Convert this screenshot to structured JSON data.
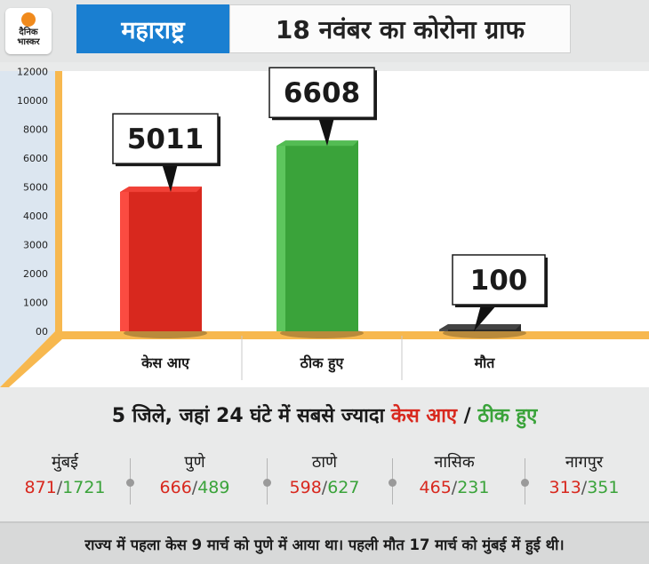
{
  "header": {
    "logo_line1": "दैनिक",
    "logo_line2": "भास्कर",
    "state": "महाराष्ट्र",
    "title": "18 नवंबर का कोरोना ग्राफ"
  },
  "colors": {
    "cases": "#d8281e",
    "recovered": "#3aa33a",
    "deaths": "#2a2a2a",
    "accent_blue": "#1a7fd1",
    "axis_yellow": "#f7b84f"
  },
  "chart_data": {
    "type": "bar",
    "categories": [
      "केस आए",
      "ठीक हुए",
      "मौत"
    ],
    "values": [
      5011,
      6608,
      100
    ],
    "data_labels": [
      "5011",
      "6608",
      "100"
    ],
    "y_ticks": [
      "00",
      "1000",
      "2000",
      "3000",
      "4000",
      "5000",
      "6000",
      "8000",
      "10000",
      "12000"
    ],
    "title": "",
    "xlabel": "",
    "ylabel": "",
    "grid": false,
    "legend": "none"
  },
  "districts_title": {
    "prefix": "5 जिले, जहां 24 घंटे में सबसे ज्यादा ",
    "cases_word": "केस आए",
    "slash": " / ",
    "recovered_word": "ठीक हुए"
  },
  "districts": [
    {
      "name": "मुंबई",
      "cases": "871",
      "recovered": "1721"
    },
    {
      "name": "पुणे",
      "cases": "666",
      "recovered": "489"
    },
    {
      "name": "ठाणे",
      "cases": "598",
      "recovered": "627"
    },
    {
      "name": "नासिक",
      "cases": "465",
      "recovered": "231"
    },
    {
      "name": "नागपुर",
      "cases": "313",
      "recovered": "351"
    }
  ],
  "footer": "राज्य में पहला केस 9 मार्च को पुणे में आया था। पहली मौत 17 मार्च को मुंबई में हुई थी।"
}
